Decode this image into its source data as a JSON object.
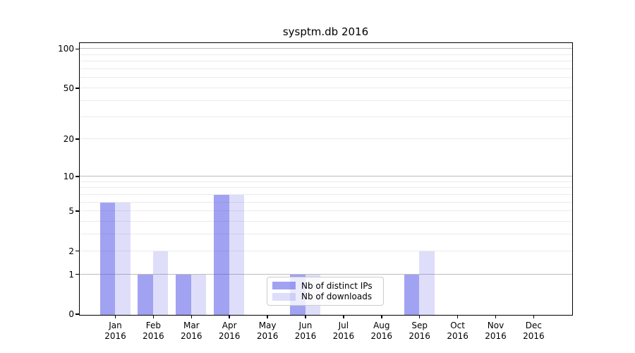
{
  "title": "sysptm.db 2016",
  "chart_data": {
    "type": "bar",
    "title": "sysptm.db 2016",
    "categories": [
      "Jan",
      "Feb",
      "Mar",
      "Apr",
      "May",
      "Jun",
      "Jul",
      "Aug",
      "Sep",
      "Oct",
      "Nov",
      "Dec"
    ],
    "year": "2016",
    "series": [
      {
        "name": "Nb of distinct IPs",
        "color": "rgba(70,70,230,0.50)",
        "values": [
          6,
          1,
          1,
          7,
          0,
          1,
          0,
          0,
          1,
          0,
          0,
          0
        ]
      },
      {
        "name": "Nb of downloads",
        "color": "rgba(70,70,230,0.18)",
        "values": [
          6,
          2,
          1,
          7,
          0,
          1,
          0,
          0,
          2,
          0,
          0,
          0
        ]
      }
    ],
    "xlabel": "",
    "ylabel": "",
    "y_scale": "log1p",
    "y_ticks": [
      0,
      1,
      2,
      5,
      10,
      20,
      50,
      100
    ],
    "y_major_gridlines": [
      1,
      10,
      100
    ],
    "y_minor_gridlines": [
      2,
      3,
      4,
      5,
      6,
      7,
      8,
      9,
      20,
      30,
      40,
      50,
      60,
      70,
      80,
      90
    ],
    "ylim": [
      0,
      111
    ],
    "grid": "horizontal",
    "legend_position": "lower center"
  },
  "colors": {
    "major_grid": "#bdbdbd",
    "minor_grid": "#ebebee",
    "spine": "#000000",
    "legend_border": "#cccccc"
  }
}
